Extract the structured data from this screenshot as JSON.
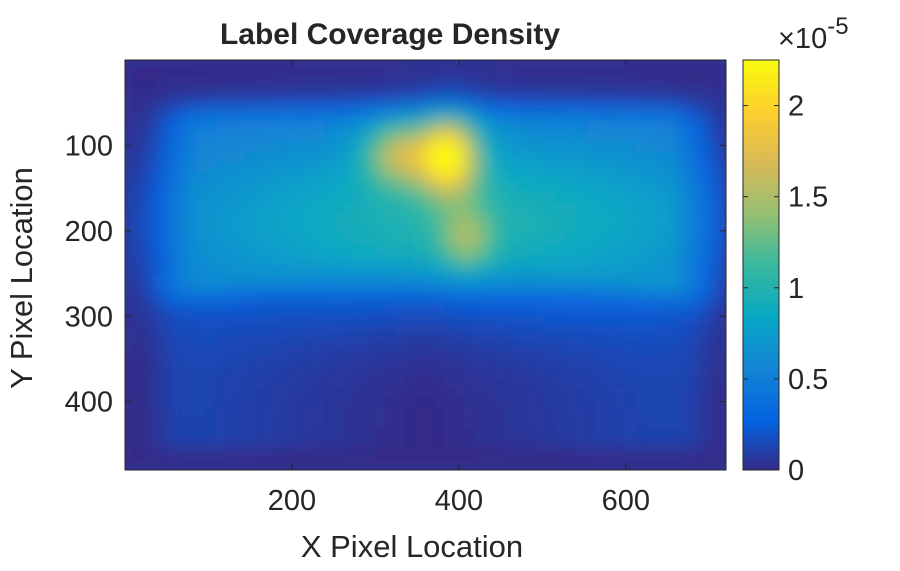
{
  "chart_data": {
    "type": "heatmap",
    "title": "Label Coverage Density",
    "xlabel": "X Pixel Location",
    "ylabel": "Y Pixel Location",
    "xlim": [
      0,
      720
    ],
    "ylim": [
      0,
      480
    ],
    "y_reversed": true,
    "xticks": [
      200,
      400,
      600
    ],
    "yticks": [
      100,
      200,
      300,
      400
    ],
    "colorbar": {
      "colormap": "parula",
      "range": [
        0,
        2.25
      ],
      "ticks": [
        0,
        0.5,
        1,
        1.5,
        2
      ],
      "tick_labels": [
        "0",
        "0.5",
        "1",
        "1.5",
        "2"
      ],
      "multiplier": "×10",
      "exponent": "-5"
    },
    "peak": {
      "x": 385,
      "y": 110,
      "value": 2.2
    },
    "grid": false,
    "legend": "none"
  }
}
